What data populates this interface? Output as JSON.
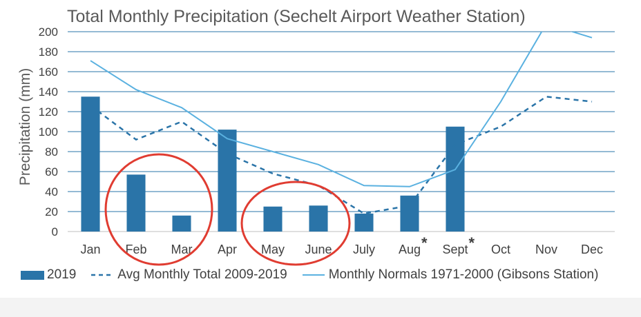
{
  "chart_data": {
    "type": "bar",
    "title": "Total Monthly Precipitation (Sechelt Airport Weather Station)",
    "ylabel": "Precipitation (mm)",
    "xlabel": "",
    "ylim": [
      0,
      200
    ],
    "yticks": [
      "0",
      "20",
      "40",
      "60",
      "80",
      "100",
      "120",
      "140",
      "160",
      "180",
      "200"
    ],
    "categories": [
      "Jan",
      "Feb",
      "Mar",
      "Apr",
      "May",
      "June",
      "July",
      "Aug",
      "Sept",
      "Oct",
      "Nov",
      "Dec"
    ],
    "tick_labels": [
      "Jan",
      "Feb",
      "Mar",
      "Apr",
      "May",
      "June",
      "July",
      "Aug",
      "Sept",
      "Oct",
      "Nov",
      "Dec"
    ],
    "asterisk_months": [
      "Aug",
      "Sept"
    ],
    "asterisk_text": "*",
    "series": [
      {
        "name": "2019",
        "type": "bar",
        "color": "#2a74a8",
        "values": [
          135,
          57,
          16,
          102,
          25,
          26,
          18,
          36,
          105,
          null,
          null,
          null
        ]
      },
      {
        "name": "Avg Monthly Total 2009-2019",
        "type": "line",
        "style": "dashed",
        "color": "#2a74a8",
        "values": [
          126,
          92,
          110,
          78,
          58,
          46,
          18,
          26,
          87,
          105,
          135,
          130
        ]
      },
      {
        "name": "Monthly Normals 1971-2000 (Gibsons Station)",
        "type": "line",
        "style": "solid",
        "color": "#5ab1e0",
        "values": [
          171,
          142,
          124,
          93,
          80,
          67,
          46,
          45,
          62,
          130,
          208,
          194
        ]
      }
    ],
    "annotations": {
      "red_circles_around": [
        [
          "Feb",
          "Mar"
        ],
        [
          "May",
          "June"
        ]
      ],
      "circle_color": "#e03c31"
    },
    "grid": true,
    "legend_position": "bottom"
  }
}
